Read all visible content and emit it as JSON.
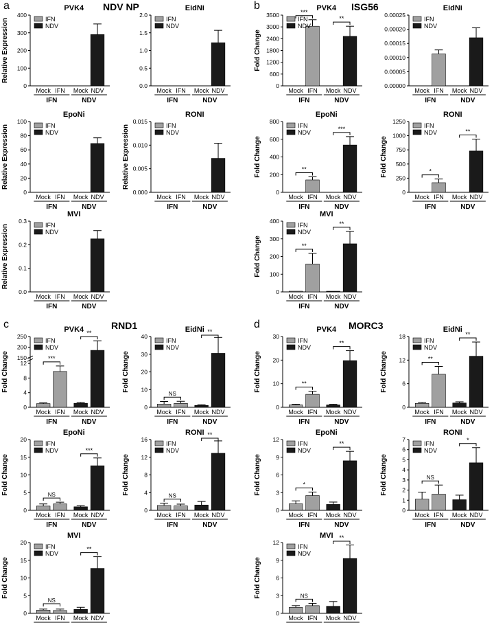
{
  "panel_a": {
    "letter": "a",
    "title": "NDV NP"
  },
  "panel_b": {
    "letter": "b",
    "title": "ISG56"
  },
  "panel_c": {
    "letter": "c",
    "title": "RND1"
  },
  "panel_d": {
    "letter": "d",
    "title": "MORC3"
  },
  "colors": {
    "IFN": "#a0a0a0",
    "NDV": "#1a1a1a",
    "Mock": "#a0a0a0"
  },
  "chart_data": [
    {
      "type": "bar",
      "panel": "a",
      "title": "PVK4",
      "ylabel": "Relative Expression",
      "ylim": [
        0,
        400
      ],
      "yticks": [
        "0",
        "100",
        "200",
        "300",
        "400"
      ],
      "legend": [
        "IFN",
        "NDV"
      ],
      "categories": [
        "Mock",
        "IFN",
        "Mock",
        "NDV"
      ],
      "groups": [
        "IFN",
        "NDV"
      ],
      "values": [
        0,
        0,
        0,
        290
      ],
      "errors": [
        0,
        0,
        0,
        60
      ],
      "significance": []
    },
    {
      "type": "bar",
      "panel": "a",
      "title": "EidNi",
      "ylabel": "",
      "ylim": [
        0,
        2.0
      ],
      "yticks": [
        "0.0",
        "0.5",
        "1.0",
        "1.5",
        "2.0"
      ],
      "legend": [
        "IFN",
        "NDV"
      ],
      "categories": [
        "Mock",
        "IFN",
        "Mock",
        "NDV"
      ],
      "groups": [
        "IFN",
        "NDV"
      ],
      "values": [
        0,
        0,
        0,
        1.22
      ],
      "errors": [
        0,
        0,
        0,
        0.35
      ],
      "significance": []
    },
    {
      "type": "bar",
      "panel": "a",
      "title": "EpoNi",
      "ylabel": "Relative Expression",
      "ylim": [
        0,
        100
      ],
      "yticks": [
        "0",
        "20",
        "40",
        "60",
        "80",
        "100"
      ],
      "legend": [
        "IFN",
        "NDV"
      ],
      "categories": [
        "Mock",
        "IFN",
        "Mock",
        "NDV"
      ],
      "groups": [
        "IFN",
        "NDV"
      ],
      "values": [
        0,
        0,
        0,
        69
      ],
      "errors": [
        0,
        0,
        0,
        8
      ],
      "significance": []
    },
    {
      "type": "bar",
      "panel": "a",
      "title": "RONI",
      "ylabel": "Relative Expression",
      "ylim": [
        0,
        0.015
      ],
      "yticks": [
        "0.000",
        "0.005",
        "0.010",
        "0.015"
      ],
      "legend": [
        "IFN",
        "NDV"
      ],
      "categories": [
        "Mock",
        "IFN",
        "Mock",
        "NDV"
      ],
      "groups": [
        "IFN",
        "NDV"
      ],
      "values": [
        0,
        0,
        0,
        0.0072
      ],
      "errors": [
        0,
        0,
        0,
        0.0032
      ],
      "significance": []
    },
    {
      "type": "bar",
      "panel": "a",
      "title": "MVI",
      "ylabel": "Relative Expression",
      "ylim": [
        0,
        0.3
      ],
      "yticks": [
        "0.0",
        "0.1",
        "0.2",
        "0.3"
      ],
      "legend": [
        "IFN",
        "NDV"
      ],
      "categories": [
        "Mock",
        "IFN",
        "Mock",
        "NDV"
      ],
      "groups": [
        "IFN",
        "NDV"
      ],
      "values": [
        0,
        0,
        0,
        0.225
      ],
      "errors": [
        0,
        0,
        0,
        0.035
      ],
      "significance": []
    },
    {
      "type": "bar",
      "panel": "b",
      "title": "PVK4",
      "ylabel": "Fold Change",
      "ylim": [
        0,
        3500
      ],
      "yticks": [
        "0",
        "600",
        "1200",
        "1800",
        "2400",
        "3000",
        "3500"
      ],
      "legend": [
        "IFN",
        "NDV"
      ],
      "categories": [
        "Mock",
        "IFN",
        "Mock",
        "NDV"
      ],
      "groups": [
        "IFN",
        "NDV"
      ],
      "values": [
        0,
        2950,
        0,
        2450
      ],
      "errors": [
        0,
        320,
        0,
        500
      ],
      "significance": [
        {
          "bars": [
            0,
            1
          ],
          "label": "***"
        },
        {
          "bars": [
            2,
            3
          ],
          "label": "**"
        }
      ]
    },
    {
      "type": "bar",
      "panel": "b",
      "title": "EidNi",
      "ylabel": "",
      "ylim": [
        0,
        0.00025
      ],
      "yticks": [
        "0.00000",
        "0.00005",
        "0.00010",
        "0.00015",
        "0.00020",
        "0.00025"
      ],
      "legend": [
        "IFN",
        "NDV"
      ],
      "categories": [
        "Mock",
        "IFN",
        "Mock",
        "NDV"
      ],
      "groups": [
        "IFN",
        "NDV"
      ],
      "values": [
        0,
        0.000113,
        0,
        0.00017
      ],
      "errors": [
        0,
        1.4e-05,
        0,
        3.5e-05
      ],
      "significance": []
    },
    {
      "type": "bar",
      "panel": "b",
      "title": "EpoNi",
      "ylabel": "Fold Change",
      "ylim": [
        0,
        800
      ],
      "yticks": [
        "0",
        "200",
        "400",
        "600",
        "800"
      ],
      "legend": [
        "IFN",
        "NDV"
      ],
      "categories": [
        "Mock",
        "IFN",
        "Mock",
        "NDV"
      ],
      "groups": [
        "IFN",
        "NDV"
      ],
      "values": [
        0,
        140,
        0,
        535
      ],
      "errors": [
        0,
        35,
        0,
        95
      ],
      "significance": [
        {
          "bars": [
            0,
            1
          ],
          "label": "**"
        },
        {
          "bars": [
            2,
            3
          ],
          "label": "***"
        }
      ]
    },
    {
      "type": "bar",
      "panel": "b",
      "title": "RONI",
      "ylabel": "Fold Change",
      "ylim": [
        0,
        1250
      ],
      "yticks": [
        "0",
        "250",
        "500",
        "750",
        "1000",
        "1250"
      ],
      "legend": [
        "IFN",
        "NDV"
      ],
      "categories": [
        "Mock",
        "IFN",
        "Mock",
        "NDV"
      ],
      "groups": [
        "IFN",
        "NDV"
      ],
      "values": [
        0,
        170,
        0,
        730
      ],
      "errors": [
        0,
        65,
        0,
        210
      ],
      "significance": [
        {
          "bars": [
            0,
            1
          ],
          "label": "*"
        },
        {
          "bars": [
            2,
            3
          ],
          "label": "**"
        }
      ]
    },
    {
      "type": "bar",
      "panel": "b",
      "title": "MVI",
      "ylabel": "Fold Change",
      "ylim": [
        0,
        400
      ],
      "yticks": [
        "0",
        "100",
        "200",
        "300",
        "400"
      ],
      "legend": [
        "IFN",
        "NDV"
      ],
      "categories": [
        "Mock",
        "IFN",
        "Mock",
        "NDV"
      ],
      "groups": [
        "IFN",
        "NDV"
      ],
      "values": [
        3,
        158,
        3,
        272
      ],
      "errors": [
        0,
        60,
        0,
        70
      ],
      "significance": [
        {
          "bars": [
            0,
            1
          ],
          "label": "**"
        },
        {
          "bars": [
            2,
            3
          ],
          "label": "**"
        }
      ]
    },
    {
      "type": "bar",
      "panel": "c",
      "title": "PVK4",
      "ylabel": "Fold Change",
      "broken_axis": true,
      "ylim": [
        0,
        250
      ],
      "yticks": [
        "0",
        "4",
        "8",
        "12",
        "150",
        "200",
        "250"
      ],
      "legend": [
        "IFN",
        "NDV"
      ],
      "categories": [
        "Mock",
        "IFN",
        "Mock",
        "NDV"
      ],
      "groups": [
        "IFN",
        "NDV"
      ],
      "values": [
        1,
        9.8,
        1.1,
        185
      ],
      "errors": [
        0.2,
        1.5,
        0.2,
        45
      ],
      "significance": [
        {
          "bars": [
            0,
            1
          ],
          "label": "***"
        },
        {
          "bars": [
            2,
            3
          ],
          "label": "**"
        }
      ]
    },
    {
      "type": "bar",
      "panel": "c",
      "title": "EidNi",
      "ylabel": "Fold Change",
      "ylim": [
        0,
        40
      ],
      "yticks": [
        "0",
        "10",
        "20",
        "30",
        "40"
      ],
      "legend": [
        "IFN",
        "NDV"
      ],
      "categories": [
        "Mock",
        "IFN",
        "Mock",
        "NDV"
      ],
      "groups": [
        "IFN",
        "NDV"
      ],
      "values": [
        1.8,
        2.2,
        1.1,
        30.5
      ],
      "errors": [
        1.5,
        1.2,
        0.3,
        9
      ],
      "significance": [
        {
          "bars": [
            0,
            1
          ],
          "label": "NS"
        },
        {
          "bars": [
            2,
            3
          ],
          "label": "**"
        }
      ]
    },
    {
      "type": "bar",
      "panel": "c",
      "title": "EpoNi",
      "ylabel": "Fold Change",
      "ylim": [
        0,
        20
      ],
      "yticks": [
        "0",
        "5",
        "10",
        "15",
        "20"
      ],
      "legend": [
        "IFN",
        "NDV"
      ],
      "categories": [
        "Mock",
        "IFN",
        "Mock",
        "NDV"
      ],
      "groups": [
        "IFN",
        "NDV"
      ],
      "values": [
        1.2,
        1.8,
        1.0,
        12.6
      ],
      "errors": [
        0.6,
        0.5,
        0.3,
        2.2
      ],
      "significance": [
        {
          "bars": [
            0,
            1
          ],
          "label": "NS"
        },
        {
          "bars": [
            2,
            3
          ],
          "label": "***"
        }
      ]
    },
    {
      "type": "bar",
      "panel": "c",
      "title": "RONI",
      "ylabel": "Fold Change",
      "ylim": [
        0,
        16
      ],
      "yticks": [
        "0",
        "4",
        "8",
        "12",
        "16"
      ],
      "legend": [
        "IFN",
        "NDV"
      ],
      "categories": [
        "Mock",
        "IFN",
        "Mock",
        "NDV"
      ],
      "groups": [
        "IFN",
        "NDV"
      ],
      "values": [
        1.1,
        1.0,
        1.2,
        12.9
      ],
      "errors": [
        0.5,
        0.4,
        0.8,
        2.8
      ],
      "significance": [
        {
          "bars": [
            0,
            1
          ],
          "label": "NS"
        },
        {
          "bars": [
            2,
            3
          ],
          "label": "**"
        }
      ]
    },
    {
      "type": "bar",
      "panel": "c",
      "title": "MVI",
      "ylabel": "Fold Change",
      "ylim": [
        0,
        20
      ],
      "yticks": [
        "0",
        "5",
        "10",
        "15",
        "20"
      ],
      "legend": [
        "IFN",
        "NDV"
      ],
      "categories": [
        "Mock",
        "IFN",
        "Mock",
        "NDV"
      ],
      "groups": [
        "IFN",
        "NDV"
      ],
      "values": [
        0.9,
        0.8,
        1.1,
        12.7
      ],
      "errors": [
        0.3,
        0.4,
        0.6,
        3.3
      ],
      "significance": [
        {
          "bars": [
            0,
            1
          ],
          "label": "NS"
        },
        {
          "bars": [
            2,
            3
          ],
          "label": "**"
        }
      ]
    },
    {
      "type": "bar",
      "panel": "d",
      "title": "PVK4",
      "ylabel": "Fold Change",
      "ylim": [
        0,
        30
      ],
      "yticks": [
        "0",
        "10",
        "20",
        "30"
      ],
      "legend": [
        "IFN",
        "NDV"
      ],
      "categories": [
        "Mock",
        "IFN",
        "Mock",
        "NDV"
      ],
      "groups": [
        "IFN",
        "NDV"
      ],
      "values": [
        1,
        5.5,
        1,
        19.8
      ],
      "errors": [
        0.3,
        1.3,
        0.3,
        4.2
      ],
      "significance": [
        {
          "bars": [
            0,
            1
          ],
          "label": "**"
        },
        {
          "bars": [
            2,
            3
          ],
          "label": "**"
        }
      ]
    },
    {
      "type": "bar",
      "panel": "d",
      "title": "EidNi",
      "ylabel": "Fold Change",
      "ylim": [
        0,
        18
      ],
      "yticks": [
        "0",
        "6",
        "12",
        "18"
      ],
      "legend": [
        "IFN",
        "NDV"
      ],
      "categories": [
        "Mock",
        "IFN",
        "Mock",
        "NDV"
      ],
      "groups": [
        "IFN",
        "NDV"
      ],
      "values": [
        1,
        8.4,
        1.1,
        13
      ],
      "errors": [
        0.2,
        2.0,
        0.3,
        3.6
      ],
      "significance": [
        {
          "bars": [
            0,
            1
          ],
          "label": "**"
        },
        {
          "bars": [
            2,
            3
          ],
          "label": "**"
        }
      ]
    },
    {
      "type": "bar",
      "panel": "d",
      "title": "EpoNi",
      "ylabel": "Fold Change",
      "ylim": [
        0,
        12
      ],
      "yticks": [
        "0",
        "3",
        "6",
        "9",
        "12"
      ],
      "legend": [
        "IFN",
        "NDV"
      ],
      "categories": [
        "Mock",
        "IFN",
        "Mock",
        "NDV"
      ],
      "groups": [
        "IFN",
        "NDV"
      ],
      "values": [
        1.1,
        2.5,
        1.0,
        8.4
      ],
      "errors": [
        0.5,
        0.6,
        0.4,
        1.6
      ],
      "significance": [
        {
          "bars": [
            0,
            1
          ],
          "label": "*"
        },
        {
          "bars": [
            2,
            3
          ],
          "label": "**"
        }
      ]
    },
    {
      "type": "bar",
      "panel": "d",
      "title": "RONI",
      "ylabel": "Fold Change",
      "ylim": [
        0,
        7
      ],
      "yticks": [
        "0",
        "1",
        "2",
        "3",
        "4",
        "5",
        "6",
        "7"
      ],
      "legend": [
        "IFN",
        "NDV"
      ],
      "categories": [
        "Mock",
        "IFN",
        "Mock",
        "NDV"
      ],
      "groups": [
        "IFN",
        "NDV"
      ],
      "values": [
        1.1,
        1.6,
        1.05,
        4.7
      ],
      "errors": [
        0.7,
        0.9,
        0.45,
        1.5
      ],
      "significance": [
        {
          "bars": [
            0,
            1
          ],
          "label": "NS"
        },
        {
          "bars": [
            2,
            3
          ],
          "label": "*"
        }
      ]
    },
    {
      "type": "bar",
      "panel": "d",
      "title": "MVI",
      "ylabel": "Fold Change",
      "ylim": [
        0,
        12
      ],
      "yticks": [
        "0",
        "3",
        "6",
        "9",
        "12"
      ],
      "legend": [
        "IFN",
        "NDV"
      ],
      "categories": [
        "Mock",
        "IFN",
        "Mock",
        "NDV"
      ],
      "groups": [
        "IFN",
        "NDV"
      ],
      "values": [
        1.0,
        1.3,
        1.2,
        9.3
      ],
      "errors": [
        0.3,
        0.4,
        0.8,
        2.3
      ],
      "significance": [
        {
          "bars": [
            0,
            1
          ],
          "label": "NS"
        },
        {
          "bars": [
            2,
            3
          ],
          "label": "**"
        }
      ]
    }
  ]
}
